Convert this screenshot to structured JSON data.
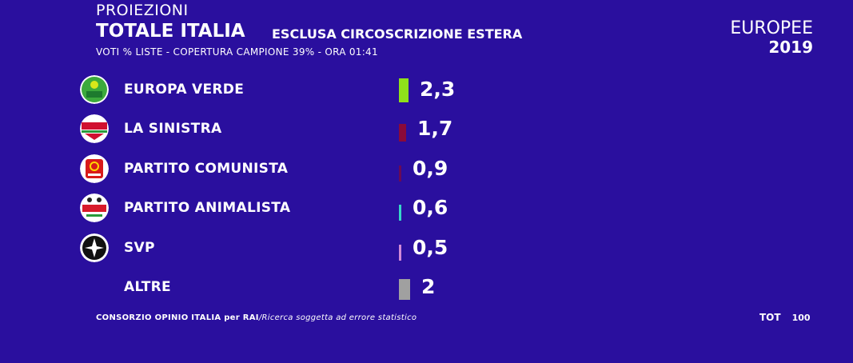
{
  "header": {
    "proiezioni": "PROIEZIONI",
    "totale": "TOTALE ITALIA",
    "esclusa": "ESCLUSA CIRCOSCRIZIONE ESTERA",
    "subtitle": "VOTI % LISTE - COPERTURA CAMPIONE 39% - ORA 01:41"
  },
  "brand": {
    "line1": "EUROPEE",
    "line2": "2019"
  },
  "footer": {
    "source": "CONSORZIO OPINIO ITALIA per RAI",
    "note": "/Ricerca soggetta ad errore statistico",
    "tot_label": "TOT",
    "tot_value": "100"
  },
  "chart_data": {
    "type": "bar",
    "categories": [
      "EUROPA VERDE",
      "LA SINISTRA",
      "PARTITO COMUNISTA",
      "PARTITO ANIMALISTA",
      "SVP",
      "ALTRE"
    ],
    "values": [
      2.3,
      1.7,
      0.9,
      0.6,
      0.5,
      2
    ],
    "value_labels": [
      "2,3",
      "1,7",
      "0,9",
      "0,6",
      "0,5",
      "2"
    ],
    "colors": [
      "#8fe01a",
      "#8a0a3a",
      "#6a0a55",
      "#36d6c8",
      "#d28ad8",
      "#a0a0a0"
    ],
    "logos": [
      "europa-verde-logo",
      "la-sinistra-logo",
      "partito-comunista-logo",
      "partito-animalista-logo",
      "svp-logo",
      ""
    ]
  }
}
